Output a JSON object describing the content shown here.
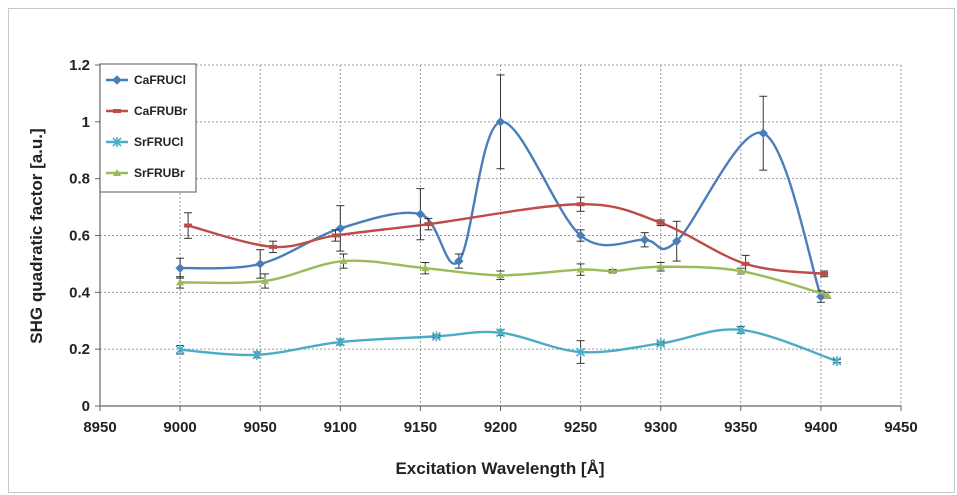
{
  "chart_data": {
    "type": "line",
    "title": "",
    "xlabel": "Excitation Wavelength [Å]",
    "ylabel": "SHG quadratic factor [a.u.]",
    "xlim": [
      8950,
      9450
    ],
    "ylim": [
      0,
      1.2
    ],
    "x_ticks": [
      "8950",
      "9000",
      "9050",
      "9100",
      "9150",
      "9200",
      "9250",
      "9300",
      "9350",
      "9400",
      "9450"
    ],
    "y_ticks": [
      "0",
      "0.2",
      "0.4",
      "0.6",
      "0.8",
      "1",
      "1.2"
    ],
    "grid": true,
    "legend_position": "top-left",
    "series": [
      {
        "name": "CaFRUCl",
        "color": "#4a7ebb",
        "marker": "diamond",
        "points": [
          {
            "x": 9000,
            "y": 0.485,
            "err": 0.035
          },
          {
            "x": 9050,
            "y": 0.5,
            "err": 0.05
          },
          {
            "x": 9100,
            "y": 0.625,
            "err": 0.08
          },
          {
            "x": 9150,
            "y": 0.675,
            "err": 0.09
          },
          {
            "x": 9174,
            "y": 0.51,
            "err": 0.025
          },
          {
            "x": 9200,
            "y": 1.0,
            "err": 0.165
          },
          {
            "x": 9250,
            "y": 0.6,
            "err": 0.02
          },
          {
            "x": 9290,
            "y": 0.585,
            "err": 0.025
          },
          {
            "x": 9310,
            "y": 0.58,
            "err": 0.07
          },
          {
            "x": 9364,
            "y": 0.96,
            "err": 0.13
          },
          {
            "x": 9400,
            "y": 0.385,
            "err": 0.02
          }
        ]
      },
      {
        "name": "CaFRUBr",
        "color": "#be4b48",
        "marker": "dash",
        "points": [
          {
            "x": 9005,
            "y": 0.635,
            "err": 0.045
          },
          {
            "x": 9058,
            "y": 0.56,
            "err": 0.02
          },
          {
            "x": 9097,
            "y": 0.6,
            "err": 0.02
          },
          {
            "x": 9155,
            "y": 0.64,
            "err": 0.02
          },
          {
            "x": 9250,
            "y": 0.71,
            "err": 0.025
          },
          {
            "x": 9300,
            "y": 0.645,
            "err": 0.01
          },
          {
            "x": 9353,
            "y": 0.5,
            "err": 0.03
          },
          {
            "x": 9402,
            "y": 0.465,
            "err": 0.01
          }
        ]
      },
      {
        "name": "SrFRUCl",
        "color": "#4bacc6",
        "marker": "asterisk",
        "points": [
          {
            "x": 9000,
            "y": 0.198,
            "err": 0.015
          },
          {
            "x": 9048,
            "y": 0.18,
            "err": 0.01
          },
          {
            "x": 9100,
            "y": 0.225,
            "err": 0.01
          },
          {
            "x": 9160,
            "y": 0.245,
            "err": 0.005
          },
          {
            "x": 9200,
            "y": 0.258,
            "err": 0.01
          },
          {
            "x": 9250,
            "y": 0.19,
            "err": 0.04
          },
          {
            "x": 9300,
            "y": 0.22,
            "err": 0.005
          },
          {
            "x": 9350,
            "y": 0.268,
            "err": 0.012
          },
          {
            "x": 9410,
            "y": 0.158,
            "err": 0.005
          }
        ]
      },
      {
        "name": "SrFRUBr",
        "color": "#9bbb59",
        "marker": "triangle",
        "points": [
          {
            "x": 9000,
            "y": 0.435,
            "err": 0.02
          },
          {
            "x": 9053,
            "y": 0.44,
            "err": 0.025
          },
          {
            "x": 9102,
            "y": 0.51,
            "err": 0.025
          },
          {
            "x": 9153,
            "y": 0.485,
            "err": 0.02
          },
          {
            "x": 9200,
            "y": 0.46,
            "err": 0.015
          },
          {
            "x": 9250,
            "y": 0.48,
            "err": 0.02
          },
          {
            "x": 9270,
            "y": 0.475,
            "err": 0.005
          },
          {
            "x": 9300,
            "y": 0.49,
            "err": 0.015
          },
          {
            "x": 9350,
            "y": 0.475,
            "err": 0.01
          },
          {
            "x": 9404,
            "y": 0.39,
            "err": 0.01
          }
        ]
      }
    ]
  }
}
